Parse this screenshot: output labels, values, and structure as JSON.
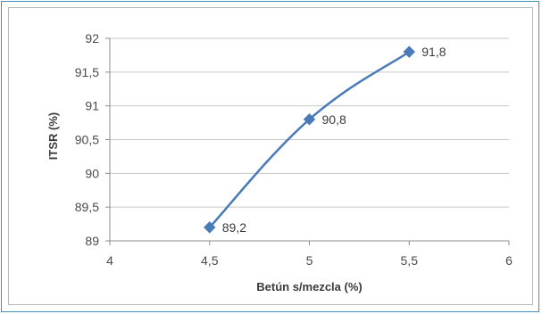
{
  "chart_data": {
    "type": "line",
    "title": "",
    "xlabel": "Betún s/mezcla (%)",
    "ylabel": "ITSR (%)",
    "xlim": [
      4,
      6
    ],
    "ylim": [
      89,
      92
    ],
    "x_ticks": [
      "4",
      "4,5",
      "5",
      "5,5",
      "6"
    ],
    "y_ticks": [
      "89",
      "89,5",
      "90",
      "90,5",
      "91",
      "91,5",
      "92"
    ],
    "grid": "horizontal",
    "legend": "none",
    "series": [
      {
        "color": "#4a7ab8",
        "marker": "diamond",
        "smooth": true,
        "points": [
          {
            "x": 4.5,
            "y": 89.2,
            "label": "89,2"
          },
          {
            "x": 5.0,
            "y": 90.8,
            "label": "90,8"
          },
          {
            "x": 5.5,
            "y": 91.8,
            "label": "91,8"
          }
        ]
      }
    ]
  }
}
